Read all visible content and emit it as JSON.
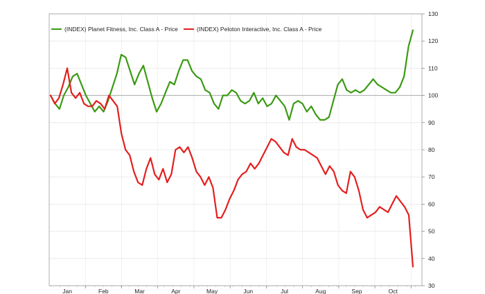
{
  "chart_data": {
    "type": "line",
    "title": "",
    "xlabel": "",
    "ylabel": "",
    "ylim": [
      30,
      130
    ],
    "yticks": [
      30,
      40,
      50,
      60,
      70,
      80,
      90,
      100,
      110,
      120,
      130
    ],
    "x_labels": [
      "Jan",
      "Feb",
      "Mar",
      "Apr",
      "May",
      "Jun",
      "Jul",
      "Aug",
      "Sep",
      "Oct"
    ],
    "baseline": 100,
    "grid": true,
    "legend_position": "top-left",
    "series": [
      {
        "name": "(INDEX) Planet Fitness, Inc. Class A - Price",
        "color": "#3a9a12",
        "values": [
          100,
          97,
          95,
          100,
          103,
          107,
          108,
          104,
          100,
          97,
          94,
          96,
          94,
          98,
          103,
          108,
          115,
          114,
          109,
          104,
          108,
          111,
          105,
          99,
          94,
          97,
          101,
          105,
          104,
          109,
          113,
          113,
          109,
          107,
          106,
          102,
          101,
          97,
          95,
          100,
          100,
          102,
          101,
          98,
          97,
          98,
          101,
          97,
          99,
          96,
          97,
          100,
          98,
          96,
          91,
          97,
          98,
          97,
          94,
          96,
          93,
          91,
          91,
          92,
          98,
          104,
          106,
          102,
          101,
          102,
          101,
          102,
          104,
          106,
          104,
          103,
          102,
          101,
          101,
          103,
          107,
          118,
          124
        ]
      },
      {
        "name": "(INDEX) Peloton Interactive, Inc. Class A - Price",
        "color": "#e41e1e",
        "values": [
          100,
          97,
          99,
          104,
          110,
          101,
          99,
          101,
          97,
          96,
          96,
          98,
          97,
          95,
          100,
          98,
          96,
          86,
          80,
          78,
          72,
          68,
          67,
          73,
          77,
          71,
          69,
          73,
          68,
          71,
          80,
          81,
          79,
          81,
          77,
          72,
          70,
          67,
          70,
          66,
          55,
          55,
          58,
          62,
          65,
          69,
          71,
          72,
          75,
          73,
          75,
          78,
          81,
          84,
          83,
          81,
          79,
          78,
          84,
          81,
          80,
          80,
          79,
          78,
          77,
          74,
          71,
          74,
          72,
          67,
          65,
          64,
          72,
          70,
          65,
          58,
          55,
          56,
          57,
          59,
          58,
          57,
          60,
          63,
          61,
          59,
          56,
          37
        ]
      }
    ]
  }
}
